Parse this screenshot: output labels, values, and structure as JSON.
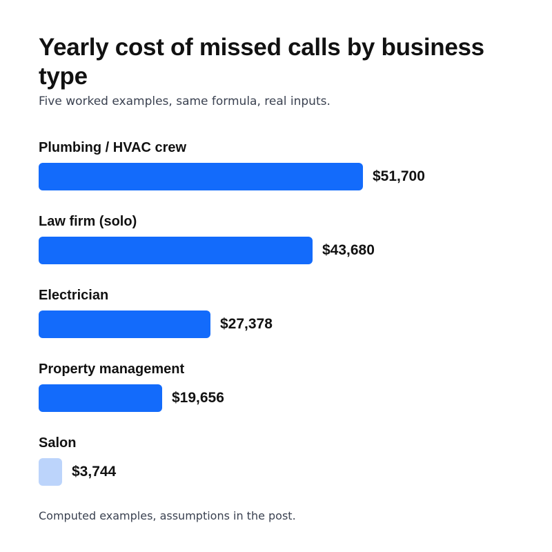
{
  "chart_data": {
    "type": "bar",
    "orientation": "horizontal",
    "title": "Yearly cost of missed calls by business type",
    "subtitle": "Five worked examples, same formula, real inputs.",
    "categories": [
      "Plumbing / HVAC crew",
      "Law firm (solo)",
      "Electrician",
      "Property management",
      "Salon"
    ],
    "values": [
      51700,
      43680,
      27378,
      19656,
      3744
    ],
    "value_labels": [
      "$51,700",
      "$43,680",
      "$27,378",
      "$19,656",
      "$3,744"
    ],
    "bar_colors": [
      "#136bfb",
      "#136bfb",
      "#136bfb",
      "#136bfb",
      "#bcd4fb"
    ],
    "xlim": [
      0,
      51700
    ],
    "grid": false,
    "legend": "none",
    "footnote": "Computed examples, assumptions in the post."
  }
}
